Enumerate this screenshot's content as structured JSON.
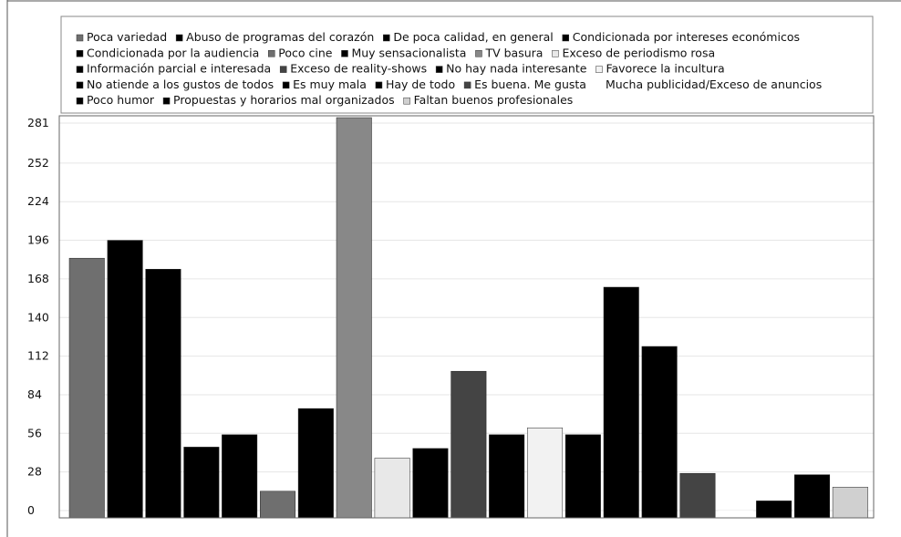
{
  "chart_data": {
    "type": "bar",
    "title": "",
    "xlabel": "",
    "ylabel": "",
    "ylim": [
      0,
      281
    ],
    "yticks": [
      0,
      28,
      56,
      84,
      112,
      140,
      168,
      196,
      224,
      252,
      281
    ],
    "grid": true,
    "legend_position": "top",
    "series": [
      {
        "name": "Poca variedad",
        "value": 183,
        "color": "#6f6f6f"
      },
      {
        "name": "Abuso de programas del corazón",
        "value": 196,
        "color": "#000000"
      },
      {
        "name": "De poca calidad, en general",
        "value": 175,
        "color": "#000000"
      },
      {
        "name": "Condicionada por intereses económicos",
        "value": 46,
        "color": "#000000"
      },
      {
        "name": "Condicionada por la audiencia",
        "value": 55,
        "color": "#000000"
      },
      {
        "name": "Poco cine",
        "value": 14,
        "color": "#6f6f6f"
      },
      {
        "name": "Muy sensacionalista",
        "value": 74,
        "color": "#000000"
      },
      {
        "name": "TV basura",
        "value": 285,
        "color": "#888888"
      },
      {
        "name": "Exceso de periodismo rosa",
        "value": 38,
        "color": "#e8e8e8"
      },
      {
        "name": "Información parcial e interesada",
        "value": 45,
        "color": "#000000"
      },
      {
        "name": "Exceso de reality-shows",
        "value": 101,
        "color": "#444444"
      },
      {
        "name": "No hay nada interesante",
        "value": 55,
        "color": "#000000"
      },
      {
        "name": "Favorece la incultura",
        "value": 60,
        "color": "#f2f2f2"
      },
      {
        "name": "No atiende a los gustos de todos",
        "value": 55,
        "color": "#000000"
      },
      {
        "name": "Es muy mala",
        "value": 162,
        "color": "#000000"
      },
      {
        "name": "Hay de todo",
        "value": 119,
        "color": "#000000"
      },
      {
        "name": "Es buena. Me gusta",
        "value": 27,
        "color": "#444444"
      },
      {
        "name": "Mucha publicidad/Exceso de anuncios",
        "value": 0,
        "color": "#ffffff"
      },
      {
        "name": "Poco humor",
        "value": 7,
        "color": "#000000"
      },
      {
        "name": "Propuestas y horarios mal organizados",
        "value": 26,
        "color": "#000000"
      },
      {
        "name": "Faltan buenos profesionales",
        "value": 17,
        "color": "#d0d0d0"
      }
    ],
    "legend_rows": [
      [
        0,
        1,
        2,
        3
      ],
      [
        4,
        5,
        6,
        7,
        8
      ],
      [
        9,
        10,
        11,
        12
      ],
      [
        13,
        14,
        15,
        16,
        17
      ],
      [
        18,
        19,
        20
      ]
    ]
  }
}
